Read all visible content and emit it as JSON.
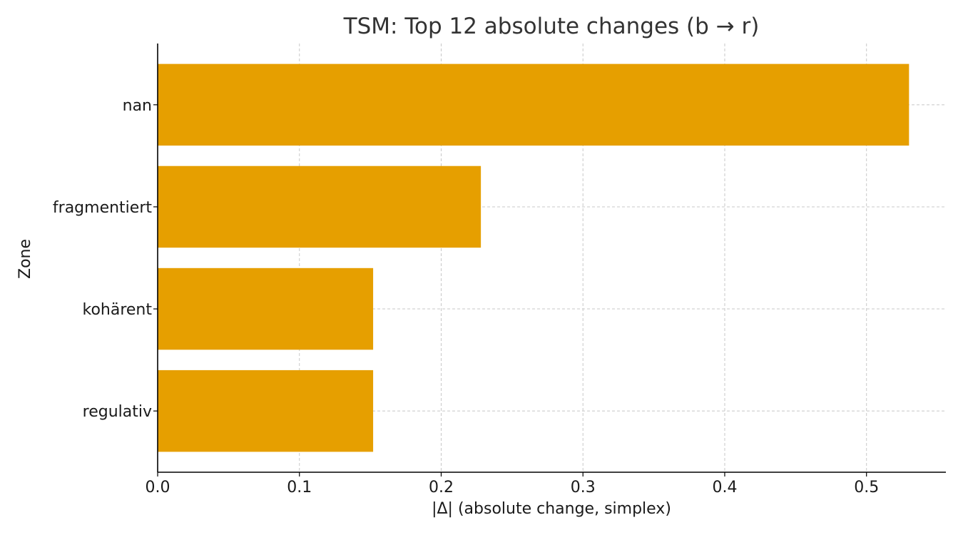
{
  "chart_data": {
    "type": "bar",
    "orientation": "horizontal",
    "title": "TSM: Top 12 absolute changes (b → r)",
    "xlabel": "|Δ| (absolute change, simplex)",
    "ylabel": "Zone",
    "categories": [
      "nan",
      "fragmentiert",
      "kohärent",
      "regulativ"
    ],
    "values": [
      0.53,
      0.228,
      0.152,
      0.152
    ],
    "xlim": [
      0,
      0.556
    ],
    "xticks": [
      0.0,
      0.1,
      0.2,
      0.3,
      0.4,
      0.5
    ],
    "xtick_labels": [
      "0.0",
      "0.1",
      "0.2",
      "0.3",
      "0.4",
      "0.5"
    ],
    "grid": true,
    "bar_color": "#E69F00"
  }
}
